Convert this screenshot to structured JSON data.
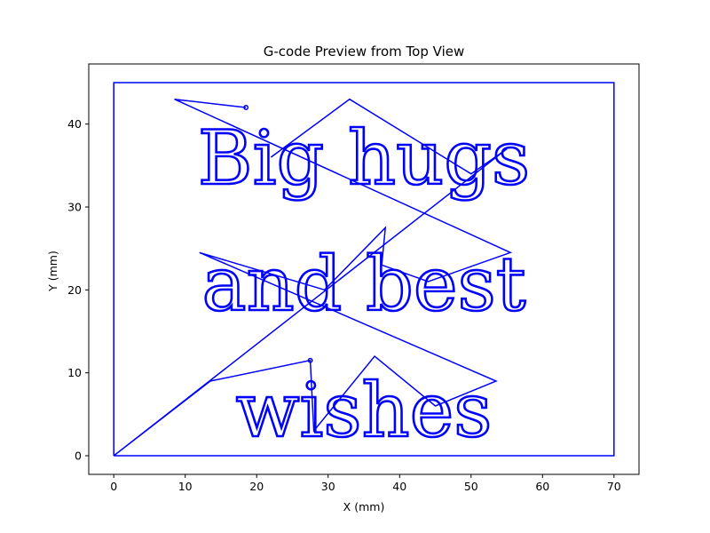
{
  "chart_data": {
    "type": "line",
    "title": "G-code Preview from Top View",
    "xlabel": "X (mm)",
    "ylabel": "Y (mm)",
    "xlim": [
      -3.5,
      73.5
    ],
    "ylim": [
      -2.25,
      47.25
    ],
    "xticks": [
      0,
      10,
      20,
      30,
      40,
      50,
      60,
      70
    ],
    "yticks": [
      0,
      10,
      20,
      30,
      40
    ],
    "grid": false,
    "line_color": "#0000ff",
    "text_lines": [
      "Big hugs",
      "and best",
      "wishes"
    ],
    "series": [
      {
        "values": [
          {
            "x": 0,
            "y": 0
          },
          {
            "x": 70,
            "y": 0
          },
          {
            "x": 70,
            "y": 45
          },
          {
            "x": 0,
            "y": 45
          },
          {
            "x": 0,
            "y": 0
          }
        ]
      },
      {
        "values": [
          {
            "x": 18.5,
            "y": 42
          },
          {
            "x": 8.5,
            "y": 43
          },
          {
            "x": 55.5,
            "y": 24.5
          },
          {
            "x": 44,
            "y": 21
          },
          {
            "x": 37.5,
            "y": 23
          },
          {
            "x": 38,
            "y": 27.5
          },
          {
            "x": 29.5,
            "y": 20
          },
          {
            "x": 12,
            "y": 24.5
          },
          {
            "x": 53.5,
            "y": 9
          },
          {
            "x": 45,
            "y": 6
          },
          {
            "x": 36.5,
            "y": 12
          },
          {
            "x": 28,
            "y": 3
          },
          {
            "x": 27.5,
            "y": 11.5
          },
          {
            "x": 13.5,
            "y": 9
          },
          {
            "x": 0,
            "y": 0
          },
          {
            "x": 55,
            "y": 37
          },
          {
            "x": 50,
            "y": 34
          },
          {
            "x": 33,
            "y": 43
          },
          {
            "x": 22,
            "y": 36
          }
        ]
      }
    ]
  }
}
